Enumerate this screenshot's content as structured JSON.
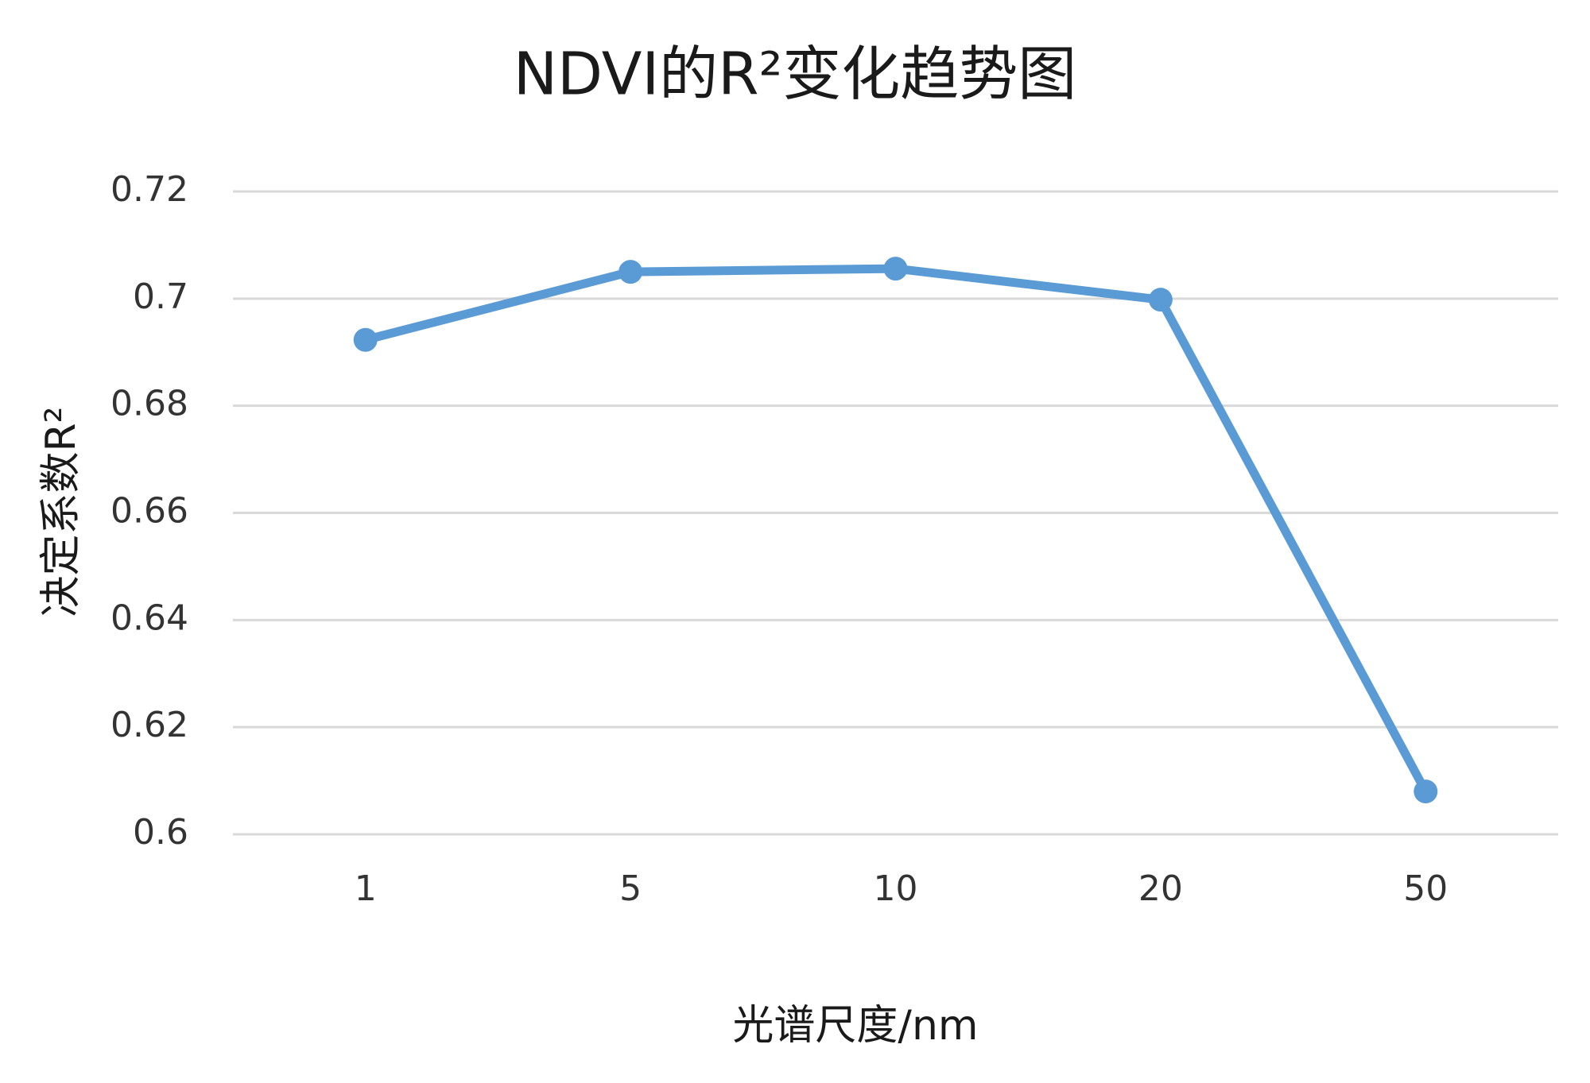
{
  "chart_data": {
    "type": "line",
    "title": "NDVI的R²变化趋势图",
    "x_label": "光谱尺度/nm",
    "y_label": "决定系数R²",
    "categories": [
      "1",
      "5",
      "10",
      "20",
      "50"
    ],
    "values": [
      0.6923,
      0.705,
      0.7056,
      0.6998,
      0.608
    ],
    "color": "#5b9bd5",
    "ylim": [
      0.6,
      0.72
    ],
    "yticks": [
      0.6,
      0.62,
      0.64,
      0.66,
      0.68,
      0.7,
      0.72
    ],
    "grid": true
  }
}
